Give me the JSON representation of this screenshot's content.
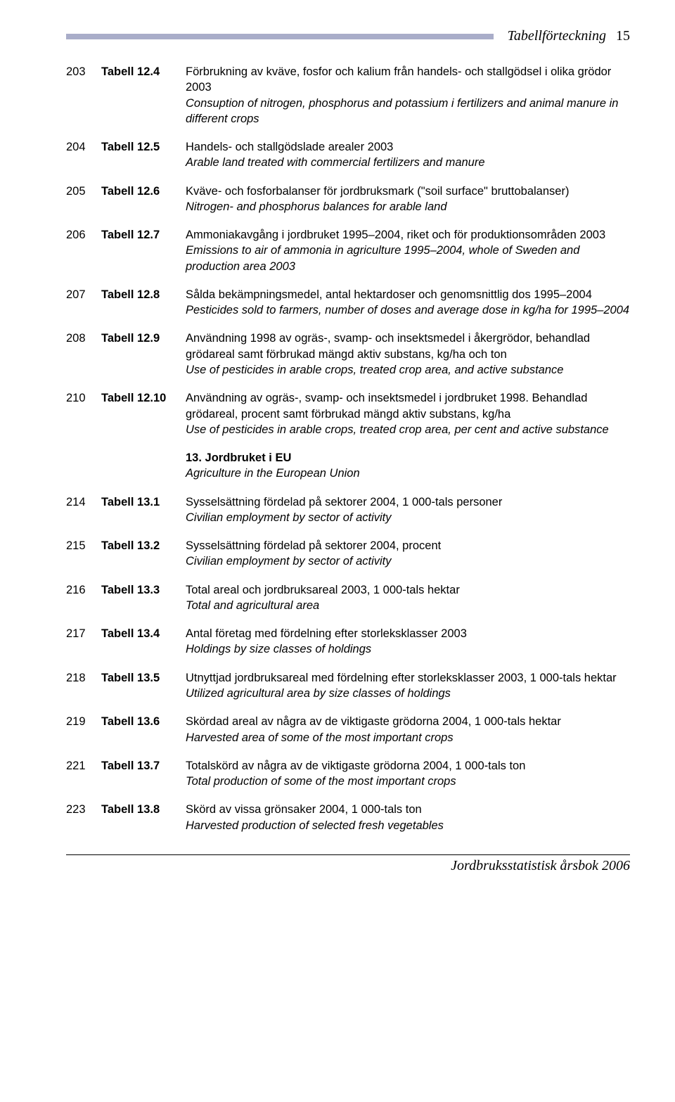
{
  "header": {
    "title": "Tabellförteckning",
    "page_number": "15",
    "rule_color": "#a9adc9"
  },
  "entries": [
    {
      "page": "203",
      "label": "Tabell 12.4",
      "sv": "Förbrukning av kväve, fosfor och kalium från handels- och stallgödsel i olika grödor 2003",
      "en": "Consuption of nitrogen, phosphorus and potassium i fertilizers and animal manure in different crops"
    },
    {
      "page": "204",
      "label": "Tabell 12.5",
      "sv": "Handels- och stallgödslade arealer 2003",
      "en": "Arable land treated with commercial fertilizers and manure"
    },
    {
      "page": "205",
      "label": "Tabell 12.6",
      "sv": "Kväve- och fosforbalanser för jordbruksmark (\"soil surface\" bruttobalanser)",
      "en": "Nitrogen- and phosphorus balances for arable land"
    },
    {
      "page": "206",
      "label": "Tabell 12.7",
      "sv": "Ammoniakavgång i jordbruket 1995–2004, riket och för produktionsområden 2003",
      "en": "Emissions to air of ammonia in agriculture 1995–2004, whole of Sweden and production area 2003"
    },
    {
      "page": "207",
      "label": "Tabell 12.8",
      "sv": "Sålda bekämpningsmedel, antal hektardoser och genomsnittlig dos 1995–2004",
      "en": "Pesticides sold to farmers, number of doses and average dose in kg/ha for 1995–2004"
    },
    {
      "page": "208",
      "label": "Tabell 12.9",
      "sv": "Användning 1998 av ogräs-, svamp- och insektsmedel i åkergrödor, behandlad grödareal samt förbrukad mängd aktiv substans, kg/ha och ton",
      "en": "Use of pesticides in arable crops, treated crop area, and active substance"
    },
    {
      "page": "210",
      "label": "Tabell 12.10",
      "sv": "Användning av ogräs-, svamp- och insektsmedel i jordbruket 1998. Behandlad grödareal, procent samt förbrukad mängd aktiv substans, kg/ha",
      "en": "Use of pesticides in arable crops, treated crop area, per cent and active substance"
    }
  ],
  "section": {
    "title": "13. Jordbruket i EU",
    "subtitle": "Agriculture in the European Union"
  },
  "entries2": [
    {
      "page": "214",
      "label": "Tabell 13.1",
      "sv": "Sysselsättning fördelad på sektorer 2004, 1 000-tals personer",
      "en": "Civilian employment by sector of activity"
    },
    {
      "page": "215",
      "label": "Tabell 13.2",
      "sv": "Sysselsättning fördelad på sektorer 2004, procent",
      "en": "Civilian employment by sector of activity"
    },
    {
      "page": "216",
      "label": "Tabell 13.3",
      "sv": "Total areal och jordbruksareal 2003, 1 000-tals hektar",
      "en": "Total and agricultural area"
    },
    {
      "page": "217",
      "label": "Tabell 13.4",
      "sv": "Antal företag med fördelning efter storleksklasser 2003",
      "en": "Holdings by size classes of holdings"
    },
    {
      "page": "218",
      "label": "Tabell 13.5",
      "sv": "Utnyttjad jordbruksareal med fördelning efter storleksklasser 2003, 1 000-tals hektar",
      "en": "Utilized agricultural area by size classes of holdings"
    },
    {
      "page": "219",
      "label": "Tabell 13.6",
      "sv": "Skördad areal av några av de viktigaste grödorna 2004, 1 000-tals hektar",
      "en": "Harvested area of some of the most important crops"
    },
    {
      "page": "221",
      "label": "Tabell 13.7",
      "sv": "Totalskörd av några av de viktigaste grödorna 2004, 1 000-tals ton",
      "en": "Total production of some of the most important crops"
    },
    {
      "page": "223",
      "label": "Tabell 13.8",
      "sv": "Skörd av vissa grönsaker 2004, 1 000-tals ton",
      "en": "Harvested production of selected fresh vegetables"
    }
  ],
  "footer": {
    "text": "Jordbruksstatistisk årsbok 2006"
  }
}
